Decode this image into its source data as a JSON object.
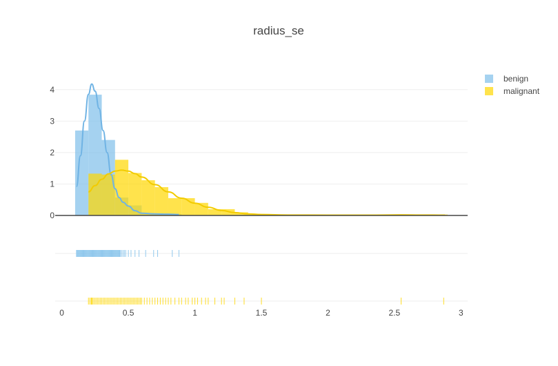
{
  "chart_data": {
    "type": "histogram-distplot",
    "title": "radius_se",
    "xlim": [
      -0.05,
      3.05
    ],
    "ylim": [
      0,
      4.5
    ],
    "x_ticks": [
      0,
      0.5,
      1,
      1.5,
      2,
      2.5,
      3
    ],
    "x_tick_labels": [
      "0",
      "0.5",
      "1",
      "1.5",
      "2",
      "2.5",
      "3"
    ],
    "y_ticks": [
      0,
      1,
      2,
      3,
      4
    ],
    "y_tick_labels": [
      "0",
      "1",
      "2",
      "3",
      "4"
    ],
    "legend_position": "top-right",
    "series": [
      {
        "name": "benign",
        "color": "#7fbfea",
        "bin_size": 0.1,
        "bins": [
          {
            "start": 0.1,
            "end": 0.2,
            "density": 2.7
          },
          {
            "start": 0.2,
            "end": 0.3,
            "density": 3.84
          },
          {
            "start": 0.3,
            "end": 0.4,
            "density": 2.4
          },
          {
            "start": 0.4,
            "end": 0.5,
            "density": 0.57
          },
          {
            "start": 0.5,
            "end": 0.6,
            "density": 0.32
          },
          {
            "start": 0.6,
            "end": 0.7,
            "density": 0.07
          },
          {
            "start": 0.7,
            "end": 0.8,
            "density": 0.05
          },
          {
            "start": 0.8,
            "end": 0.9,
            "density": 0.04
          }
        ],
        "kde": [
          {
            "x": 0.11,
            "y": 0.92
          },
          {
            "x": 0.14,
            "y": 1.9
          },
          {
            "x": 0.17,
            "y": 3.0
          },
          {
            "x": 0.2,
            "y": 3.85
          },
          {
            "x": 0.225,
            "y": 4.18
          },
          {
            "x": 0.25,
            "y": 3.95
          },
          {
            "x": 0.28,
            "y": 3.4
          },
          {
            "x": 0.31,
            "y": 2.7
          },
          {
            "x": 0.34,
            "y": 2.0
          },
          {
            "x": 0.37,
            "y": 1.3
          },
          {
            "x": 0.4,
            "y": 0.85
          },
          {
            "x": 0.43,
            "y": 0.57
          },
          {
            "x": 0.46,
            "y": 0.42
          },
          {
            "x": 0.5,
            "y": 0.3
          },
          {
            "x": 0.55,
            "y": 0.15
          },
          {
            "x": 0.6,
            "y": 0.07
          },
          {
            "x": 0.7,
            "y": 0.05
          },
          {
            "x": 0.8,
            "y": 0.04
          },
          {
            "x": 0.88,
            "y": 0.03
          }
        ],
        "rug": [
          0.11,
          0.115,
          0.12,
          0.125,
          0.13,
          0.135,
          0.14,
          0.145,
          0.15,
          0.155,
          0.16,
          0.165,
          0.17,
          0.175,
          0.18,
          0.185,
          0.19,
          0.195,
          0.2,
          0.205,
          0.21,
          0.215,
          0.22,
          0.225,
          0.23,
          0.235,
          0.24,
          0.245,
          0.25,
          0.255,
          0.26,
          0.265,
          0.27,
          0.275,
          0.28,
          0.285,
          0.29,
          0.295,
          0.3,
          0.305,
          0.31,
          0.315,
          0.32,
          0.325,
          0.33,
          0.335,
          0.34,
          0.345,
          0.35,
          0.355,
          0.36,
          0.365,
          0.37,
          0.375,
          0.38,
          0.385,
          0.39,
          0.395,
          0.4,
          0.405,
          0.41,
          0.415,
          0.42,
          0.425,
          0.43,
          0.435,
          0.44,
          0.45,
          0.46,
          0.47,
          0.48,
          0.5,
          0.52,
          0.55,
          0.58,
          0.63,
          0.69,
          0.72,
          0.83,
          0.88
        ]
      },
      {
        "name": "malignant",
        "color": "#ffd700",
        "bin_size": 0.1,
        "bins": [
          {
            "start": 0.2,
            "end": 0.3,
            "density": 1.33
          },
          {
            "start": 0.3,
            "end": 0.4,
            "density": 1.3
          },
          {
            "start": 0.4,
            "end": 0.5,
            "density": 1.77
          },
          {
            "start": 0.5,
            "end": 0.6,
            "density": 1.35
          },
          {
            "start": 0.6,
            "end": 0.7,
            "density": 1.12
          },
          {
            "start": 0.7,
            "end": 0.8,
            "density": 0.9
          },
          {
            "start": 0.8,
            "end": 0.9,
            "density": 0.55
          },
          {
            "start": 0.9,
            "end": 1.0,
            "density": 0.55
          },
          {
            "start": 1.0,
            "end": 1.1,
            "density": 0.4
          },
          {
            "start": 1.1,
            "end": 1.2,
            "density": 0.2
          },
          {
            "start": 1.2,
            "end": 1.3,
            "density": 0.2
          },
          {
            "start": 1.3,
            "end": 1.4,
            "density": 0.1
          },
          {
            "start": 1.4,
            "end": 1.5,
            "density": 0.05
          },
          {
            "start": 1.5,
            "end": 1.6,
            "density": 0.03
          },
          {
            "start": 1.6,
            "end": 1.7,
            "density": 0.03
          },
          {
            "start": 2.5,
            "end": 2.6,
            "density": 0.03
          },
          {
            "start": 2.8,
            "end": 2.9,
            "density": 0.03
          }
        ],
        "kde": [
          {
            "x": 0.2,
            "y": 0.75
          },
          {
            "x": 0.25,
            "y": 0.95
          },
          {
            "x": 0.3,
            "y": 1.15
          },
          {
            "x": 0.35,
            "y": 1.32
          },
          {
            "x": 0.4,
            "y": 1.41
          },
          {
            "x": 0.45,
            "y": 1.44
          },
          {
            "x": 0.5,
            "y": 1.41
          },
          {
            "x": 0.55,
            "y": 1.33
          },
          {
            "x": 0.6,
            "y": 1.22
          },
          {
            "x": 0.7,
            "y": 0.98
          },
          {
            "x": 0.8,
            "y": 0.75
          },
          {
            "x": 0.9,
            "y": 0.55
          },
          {
            "x": 1.0,
            "y": 0.39
          },
          {
            "x": 1.1,
            "y": 0.26
          },
          {
            "x": 1.2,
            "y": 0.16
          },
          {
            "x": 1.3,
            "y": 0.09
          },
          {
            "x": 1.4,
            "y": 0.05
          },
          {
            "x": 1.5,
            "y": 0.03
          },
          {
            "x": 1.7,
            "y": 0.015
          },
          {
            "x": 2.0,
            "y": 0.01
          },
          {
            "x": 2.3,
            "y": 0.01
          },
          {
            "x": 2.55,
            "y": 0.02
          },
          {
            "x": 2.7,
            "y": 0.015
          },
          {
            "x": 2.88,
            "y": 0.01
          }
        ],
        "rug": [
          0.2,
          0.21,
          0.22,
          0.225,
          0.23,
          0.24,
          0.25,
          0.26,
          0.27,
          0.28,
          0.29,
          0.3,
          0.31,
          0.32,
          0.33,
          0.34,
          0.35,
          0.36,
          0.37,
          0.38,
          0.39,
          0.4,
          0.41,
          0.42,
          0.43,
          0.44,
          0.45,
          0.46,
          0.47,
          0.48,
          0.49,
          0.5,
          0.51,
          0.52,
          0.53,
          0.54,
          0.55,
          0.56,
          0.57,
          0.58,
          0.59,
          0.6,
          0.62,
          0.64,
          0.66,
          0.68,
          0.7,
          0.72,
          0.74,
          0.76,
          0.78,
          0.8,
          0.82,
          0.85,
          0.88,
          0.9,
          0.93,
          0.95,
          0.98,
          1.0,
          1.02,
          1.05,
          1.08,
          1.1,
          1.15,
          1.2,
          1.22,
          1.3,
          1.37,
          1.5,
          2.55,
          2.87
        ]
      }
    ]
  }
}
